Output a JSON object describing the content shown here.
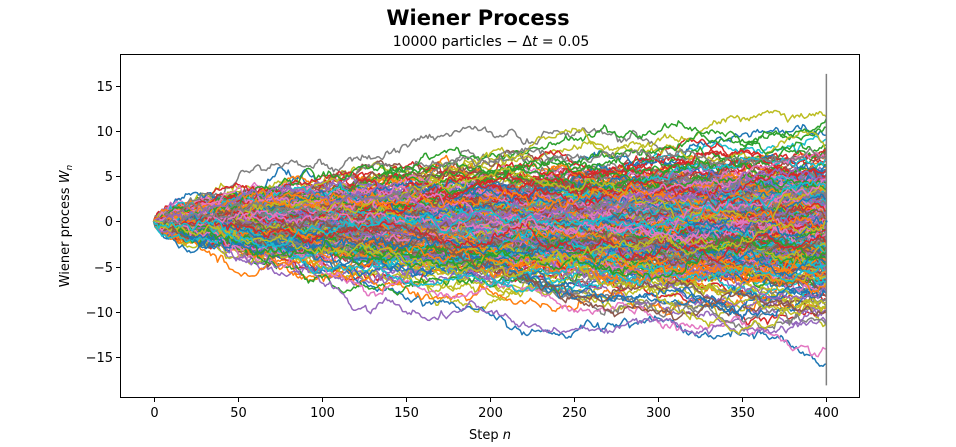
{
  "chart_data": {
    "type": "line",
    "title": "Wiener Process",
    "subtitle": "10000 particles − Δt = 0.05",
    "subtitle_parts": {
      "prefix": "10000 particles − Δ",
      "var": "t",
      "suffix": " = 0.05"
    },
    "xlabel": "Step n",
    "xlabel_parts": {
      "text": "Step ",
      "var": "n"
    },
    "ylabel": "Wiener process W_n",
    "ylabel_parts": {
      "text": "Wiener process ",
      "var": "W",
      "sub": "n"
    },
    "particles": 10000,
    "dt": 0.05,
    "n_steps": 400,
    "xlim": [
      -20,
      420
    ],
    "ylim": [
      -19.5,
      18.5
    ],
    "x_ticks": [
      0,
      50,
      100,
      150,
      200,
      250,
      300,
      350,
      400
    ],
    "x_tick_labels": [
      "0",
      "50",
      "100",
      "150",
      "200",
      "250",
      "300",
      "350",
      "400"
    ],
    "y_ticks": [
      15,
      10,
      5,
      0,
      -5,
      -10,
      -15
    ],
    "y_tick_labels": [
      "15",
      "10",
      "5",
      "0",
      "−5",
      "−10",
      "−15"
    ],
    "grid": false,
    "legend": "none",
    "colors": [
      "#1f77b4",
      "#ff7f0e",
      "#2ca02c",
      "#d62728",
      "#9467bd",
      "#8c564b",
      "#e377c2",
      "#7f7f7f",
      "#bcbd22",
      "#17becf"
    ],
    "envelope_at_end": {
      "max": 16.3,
      "min": -18.1
    },
    "final_series_value_at_400": 0.0
  }
}
